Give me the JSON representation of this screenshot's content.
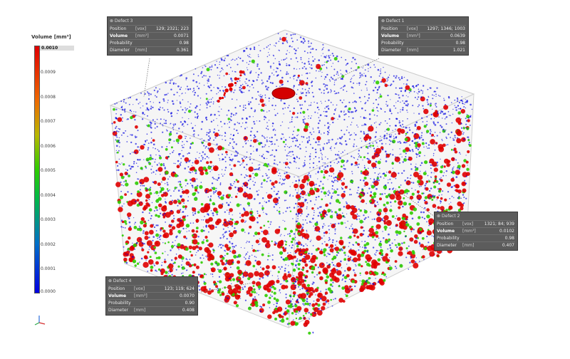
{
  "legend": {
    "title": "Volume [mm³]",
    "ticks": [
      "0.0010",
      "0.0009",
      "0.0008",
      "0.0007",
      "0.0006",
      "0.0005",
      "0.0004",
      "0.0003",
      "0.0002",
      "0.0001",
      "0.0000"
    ],
    "range": [
      0.0,
      0.001
    ]
  },
  "colors": {
    "high": "#e00000",
    "mid": "#2fcc00",
    "low": "#0000e0",
    "callout_bg": "#5c5c5c"
  },
  "callouts": [
    {
      "id": "defect-3",
      "title": "⊗ Defect 3",
      "rows": [
        {
          "label": "Position",
          "unit": "[vox]",
          "value": "129; 2321; 223"
        },
        {
          "label": "Volume",
          "unit": "[mm³]",
          "value": "0.0071",
          "bold": true
        },
        {
          "label": "Probability",
          "unit": "",
          "value": "0.98"
        },
        {
          "label": "Diameter",
          "unit": "[mm]",
          "value": "0.361"
        }
      ]
    },
    {
      "id": "defect-1",
      "title": "⊗ Defect 1",
      "rows": [
        {
          "label": "Position",
          "unit": "[vox]",
          "value": "1297; 1346; 1003"
        },
        {
          "label": "Volume",
          "unit": "[mm³]",
          "value": "0.0639",
          "bold": true
        },
        {
          "label": "Probability",
          "unit": "",
          "value": "0.98"
        },
        {
          "label": "Diameter",
          "unit": "[mm]",
          "value": "1.021"
        }
      ]
    },
    {
      "id": "defect-2",
      "title": "⊗ Defect 2",
      "rows": [
        {
          "label": "Position",
          "unit": "[vox]",
          "value": "1321; 84; 939"
        },
        {
          "label": "Volume",
          "unit": "[mm³]",
          "value": "0.0102",
          "bold": true
        },
        {
          "label": "Probability",
          "unit": "",
          "value": "0.98"
        },
        {
          "label": "Diameter",
          "unit": "[mm]",
          "value": "0.407"
        }
      ]
    },
    {
      "id": "defect-4",
      "title": "⊗ Defect 4",
      "rows": [
        {
          "label": "Position",
          "unit": "[vox]",
          "value": "123; 119; 624"
        },
        {
          "label": "Volume",
          "unit": "[mm³]",
          "value": "0.0070",
          "bold": true
        },
        {
          "label": "Probability",
          "unit": "",
          "value": "0.90"
        },
        {
          "label": "Diameter",
          "unit": "[mm]",
          "value": "0.408"
        }
      ]
    }
  ]
}
